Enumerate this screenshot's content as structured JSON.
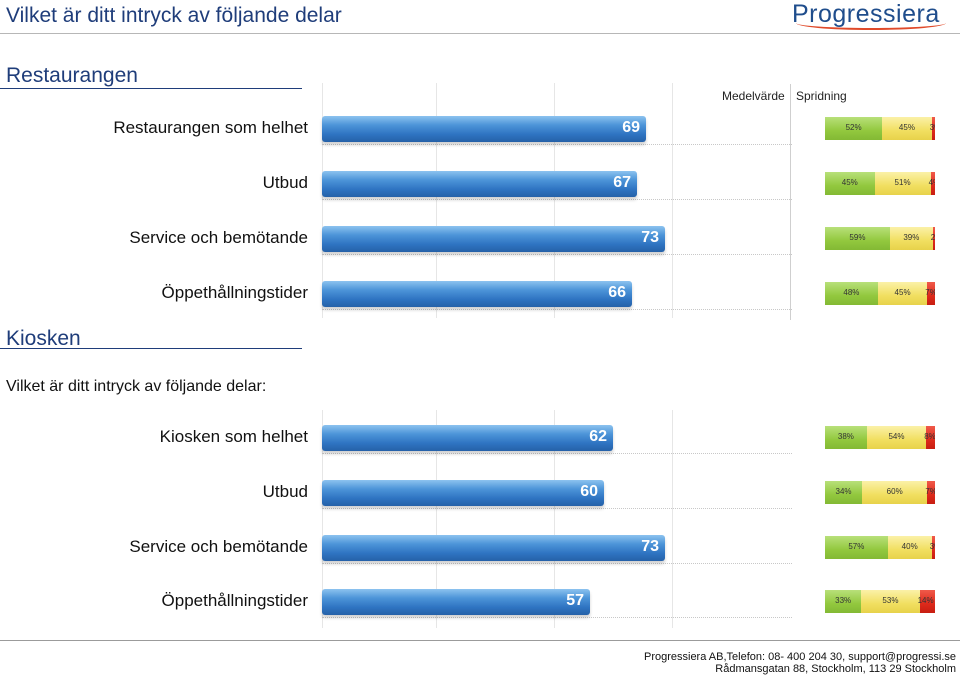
{
  "page": {
    "title": "Vilket är ditt intryck av följande delar",
    "logo_text": "Progressiera",
    "question": "Vilket är ditt intryck av följande delar:"
  },
  "columns": {
    "mean": "Medelvärde",
    "spread": "Spridning"
  },
  "colors": {
    "bar": "#2f74c2",
    "positive": "#92c83e",
    "neutral": "#f1df60",
    "negative": "#dd2a1b"
  },
  "chart_data": [
    {
      "type": "bar",
      "title": "Restaurangen",
      "categories": [
        "Restaurangen som helhet",
        "Utbud",
        "Service och bemötande",
        "Öppethållningstider"
      ],
      "values": [
        69,
        67,
        73,
        66
      ],
      "xlim": [
        0,
        100
      ],
      "spread": {
        "segments": [
          "positive",
          "neutral",
          "negative"
        ],
        "values": [
          [
            52,
            45,
            3
          ],
          [
            45,
            51,
            4
          ],
          [
            59,
            39,
            2
          ],
          [
            48,
            45,
            7
          ]
        ],
        "labels": [
          [
            "52%",
            "45%",
            "3%"
          ],
          [
            "45%",
            "51%",
            "4%"
          ],
          [
            "59%",
            "39%",
            "2%"
          ],
          [
            "48%",
            "45%",
            "7%"
          ]
        ]
      }
    },
    {
      "type": "bar",
      "title": "Kiosken",
      "categories": [
        "Kiosken som helhet",
        "Utbud",
        "Service och bemötande",
        "Öppethållningstider"
      ],
      "values": [
        62,
        60,
        73,
        57
      ],
      "xlim": [
        0,
        100
      ],
      "spread": {
        "segments": [
          "positive",
          "neutral",
          "negative"
        ],
        "values": [
          [
            38,
            54,
            8
          ],
          [
            34,
            60,
            7
          ],
          [
            57,
            40,
            3
          ],
          [
            33,
            53,
            14
          ]
        ],
        "labels": [
          [
            "38%",
            "54%",
            "8%"
          ],
          [
            "34%",
            "60%",
            "7%"
          ],
          [
            "57%",
            "40%",
            "3%"
          ],
          [
            "33%",
            "53%",
            "14%"
          ]
        ]
      }
    }
  ],
  "footer": {
    "line1": "Progressiera AB,Telefon: 08-  400 204 30, support@progressi.se",
    "line2": "Rådmansgatan 88, Stockholm, 113 29 Stockholm"
  }
}
